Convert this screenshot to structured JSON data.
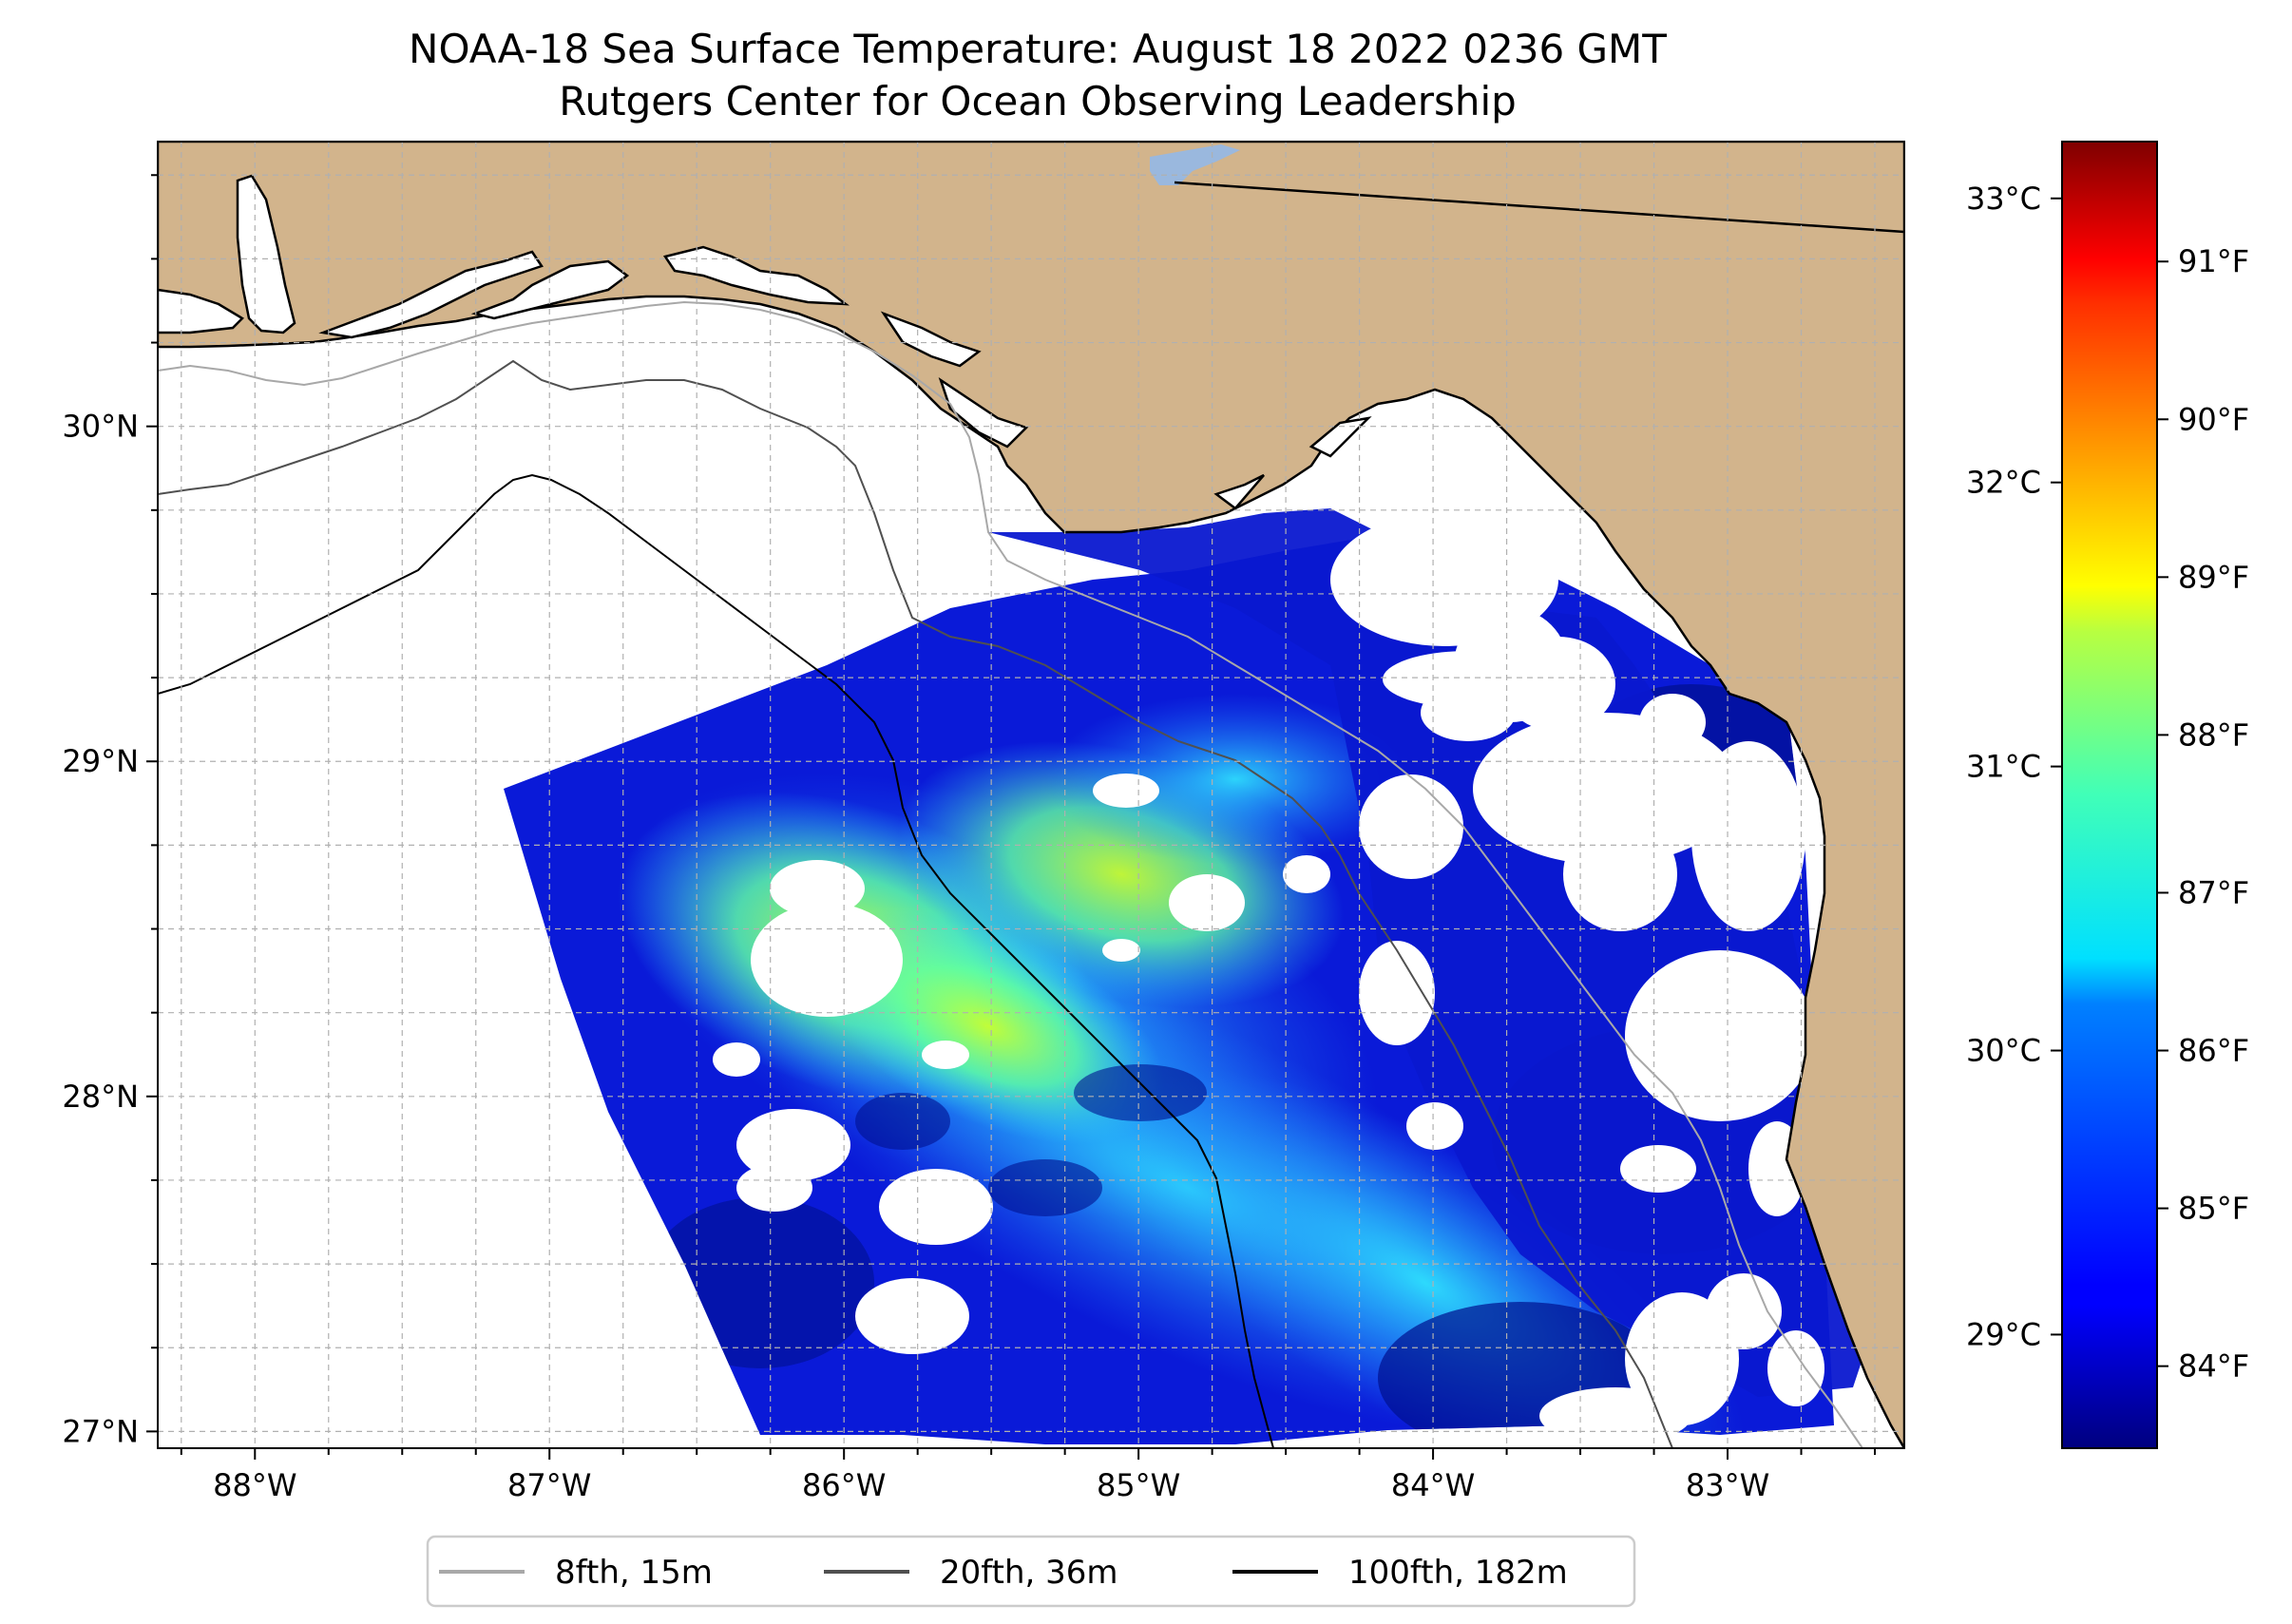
{
  "title_line1": "NOAA-18 Sea Surface Temperature: August 18 2022 0236 GMT",
  "title_line2": "Rutgers Center for Ocean Observing Leadership",
  "colors": {
    "land": "#d2b48c",
    "lake": "#9ab8de",
    "grid": "#b0b0b0",
    "contour_8fth": "#a8a8a8",
    "contour_20fth": "#505050",
    "contour_100fth": "#000000"
  },
  "chart_data": {
    "type": "heatmap",
    "x_ticks": [
      "88°W",
      "87°W",
      "86°W",
      "85°W",
      "84°W",
      "83°W"
    ],
    "x_tick_values": [
      -88,
      -87,
      -86,
      -85,
      -84,
      -83
    ],
    "y_ticks": [
      "27°N",
      "28°N",
      "29°N",
      "30°N"
    ],
    "y_tick_values": [
      27,
      28,
      29,
      30
    ],
    "lon_range": [
      -88.33,
      -82.4
    ],
    "lat_range": [
      26.95,
      30.85
    ],
    "grid": true,
    "colorbar": {
      "colormap": "jet",
      "range_c": [
        28.6,
        33.2
      ],
      "celsius_ticks": [
        "29°C",
        "30°C",
        "31°C",
        "32°C",
        "33°C"
      ],
      "celsius_values": [
        29,
        30,
        31,
        32,
        33
      ],
      "fahrenheit_ticks": [
        "84°F",
        "85°F",
        "86°F",
        "87°F",
        "88°F",
        "89°F",
        "90°F",
        "91°F"
      ],
      "fahrenheit_values": [
        84,
        85,
        86,
        87,
        88,
        89,
        90,
        91
      ]
    },
    "legend": {
      "placement": "bottom",
      "entries": [
        {
          "label": "8fth, 15m",
          "color": "#a8a8a8"
        },
        {
          "label": "20fth, 36m",
          "color": "#505050"
        },
        {
          "label": "100fth, 182m",
          "color": "#000000"
        }
      ]
    }
  }
}
